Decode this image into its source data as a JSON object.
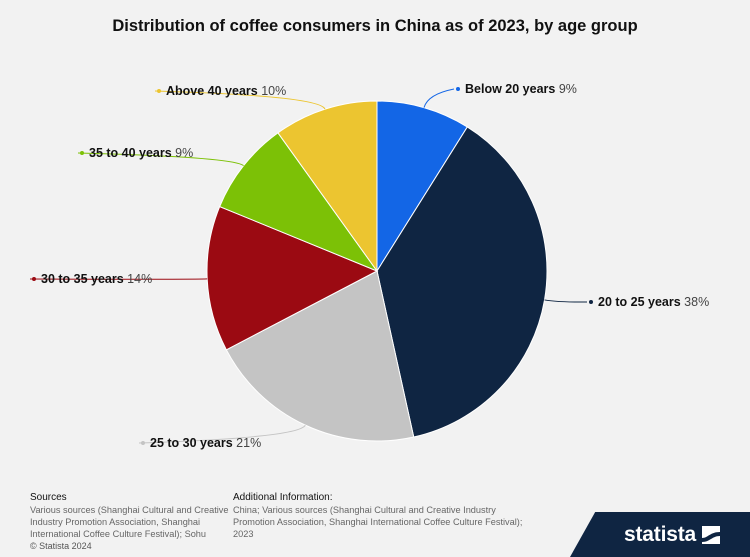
{
  "chart_data": {
    "type": "pie",
    "title": "Distribution of coffee consumers in China as of 2023, by age group",
    "slices": [
      {
        "name": "Below 20 years",
        "value": 9,
        "label": "9%",
        "color": "#1366e6"
      },
      {
        "name": "20 to 25 years",
        "value": 38,
        "label": "38%",
        "color": "#0f2542"
      },
      {
        "name": "25 to 30 years",
        "value": 21,
        "label": "21%",
        "color": "#c4c4c4"
      },
      {
        "name": "30 to 35 years",
        "value": 14,
        "label": "14%",
        "color": "#9b0a12"
      },
      {
        "name": "35 to 40 years",
        "value": 9,
        "label": "9%",
        "color": "#7cc106"
      },
      {
        "name": "Above 40 years",
        "value": 10,
        "label": "10%",
        "color": "#ecc530"
      }
    ]
  },
  "footer": {
    "sources_heading": "Sources",
    "sources_text": "Various sources (Shanghai Cultural and Creative Industry Promotion Association, Shanghai International Coffee Culture Festival); Sohu",
    "additional_heading": "Additional Information:",
    "additional_text": "China; Various sources (Shanghai Cultural and Creative Industry Promotion Association, Shanghai International Coffee Culture Festival); 2023",
    "copyright": "© Statista 2024"
  },
  "brand": {
    "name": "statista"
  }
}
